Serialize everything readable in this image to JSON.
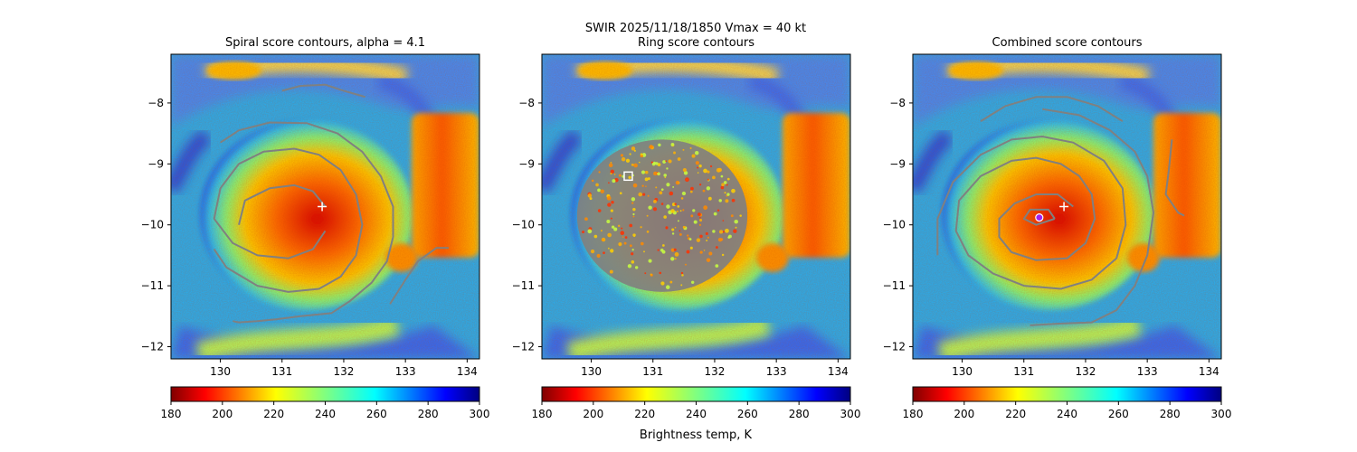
{
  "suptitle": "SWIR  2025/11/18/1850    Vmax = 40 kt",
  "colorbar_label": "Brightness temp, K",
  "colors": {
    "contour": "#808080",
    "marker": "#ffffff",
    "combined_marker": "#a020f0",
    "axis": "#000000"
  },
  "chart_data": [
    {
      "type": "heatmap",
      "title": "Spiral score contours, alpha =  4.1",
      "xlim": [
        129.2,
        134.2
      ],
      "ylim": [
        -12.2,
        -7.2
      ],
      "xticks": [
        130,
        131,
        132,
        133,
        134
      ],
      "yticks": [
        -8,
        -9,
        -10,
        -11,
        -12
      ],
      "colorbar": {
        "cmap": "jet_r",
        "range": [
          180,
          300
        ],
        "ticks": [
          180,
          200,
          220,
          240,
          260,
          280,
          300
        ]
      },
      "markers": [
        {
          "kind": "plus",
          "lon": 131.65,
          "lat": -9.7
        }
      ],
      "contours": [
        [
          [
            130.0,
            -8.65
          ],
          [
            130.3,
            -8.45
          ],
          [
            130.8,
            -8.32
          ],
          [
            131.4,
            -8.33
          ],
          [
            131.9,
            -8.5
          ],
          [
            132.3,
            -8.8
          ],
          [
            132.6,
            -9.2
          ],
          [
            132.8,
            -9.7
          ],
          [
            132.8,
            -10.2
          ],
          [
            132.7,
            -10.6
          ],
          [
            132.45,
            -10.95
          ],
          [
            132.1,
            -11.25
          ],
          [
            131.8,
            -11.45
          ],
          [
            131.3,
            -11.5
          ],
          [
            130.9,
            -11.55
          ],
          [
            130.6,
            -11.58
          ],
          [
            130.3,
            -11.6
          ],
          [
            130.2,
            -11.58
          ]
        ],
        [
          [
            131.7,
            -10.1
          ],
          [
            131.5,
            -10.4
          ],
          [
            131.1,
            -10.55
          ],
          [
            130.6,
            -10.5
          ],
          [
            130.2,
            -10.3
          ],
          [
            129.9,
            -9.9
          ],
          [
            130.0,
            -9.4
          ],
          [
            130.3,
            -9.0
          ],
          [
            130.7,
            -8.8
          ],
          [
            131.2,
            -8.75
          ],
          [
            131.6,
            -8.85
          ],
          [
            131.95,
            -9.1
          ],
          [
            132.2,
            -9.5
          ],
          [
            132.3,
            -10.0
          ],
          [
            132.2,
            -10.5
          ],
          [
            131.95,
            -10.85
          ],
          [
            131.6,
            -11.05
          ],
          [
            131.1,
            -11.1
          ],
          [
            130.6,
            -11.0
          ],
          [
            130.1,
            -10.7
          ],
          [
            129.9,
            -10.4
          ]
        ],
        [
          [
            130.3,
            -10.0
          ],
          [
            130.4,
            -9.6
          ],
          [
            130.8,
            -9.4
          ],
          [
            131.2,
            -9.35
          ],
          [
            131.5,
            -9.45
          ],
          [
            131.7,
            -9.7
          ]
        ],
        [
          [
            131.0,
            -7.8
          ],
          [
            131.3,
            -7.72
          ],
          [
            131.7,
            -7.7
          ],
          [
            132.0,
            -7.8
          ],
          [
            132.35,
            -7.9
          ]
        ],
        [
          [
            132.75,
            -11.3
          ],
          [
            133.0,
            -10.9
          ],
          [
            133.2,
            -10.6
          ],
          [
            133.5,
            -10.38
          ],
          [
            133.7,
            -10.38
          ]
        ]
      ]
    },
    {
      "type": "heatmap",
      "title": "Ring score contours",
      "xlim": [
        129.2,
        134.2
      ],
      "ylim": [
        -12.2,
        -7.2
      ],
      "xticks": [
        130,
        131,
        132,
        133,
        134
      ],
      "yticks": [
        -8,
        -9,
        -10,
        -11,
        -12
      ],
      "colorbar": {
        "cmap": "jet_r",
        "range": [
          180,
          300
        ],
        "ticks": [
          180,
          200,
          220,
          240,
          260,
          280,
          300
        ]
      },
      "markers": [
        {
          "kind": "square",
          "lon": 130.6,
          "lat": -9.2
        }
      ],
      "ring_blob": {
        "center": [
          131.15,
          -9.85
        ],
        "radius_lon": 1.38,
        "radius_lat": 1.25
      },
      "contours": []
    },
    {
      "type": "heatmap",
      "title": "Combined score contours",
      "xlim": [
        129.2,
        134.2
      ],
      "ylim": [
        -12.2,
        -7.2
      ],
      "xticks": [
        130,
        131,
        132,
        133,
        134
      ],
      "yticks": [
        -8,
        -9,
        -10,
        -11,
        -12
      ],
      "colorbar": {
        "cmap": "jet_r",
        "range": [
          180,
          300
        ],
        "ticks": [
          180,
          200,
          220,
          240,
          260,
          280,
          300
        ]
      },
      "markers": [
        {
          "kind": "plus",
          "lon": 131.65,
          "lat": -9.7
        },
        {
          "kind": "circle",
          "lon": 131.25,
          "lat": -9.88
        }
      ],
      "contours": [
        [
          [
            131.3,
            -8.1
          ],
          [
            131.9,
            -8.2
          ],
          [
            132.4,
            -8.45
          ],
          [
            132.8,
            -8.8
          ],
          [
            133.0,
            -9.2
          ],
          [
            133.1,
            -9.8
          ],
          [
            133.0,
            -10.5
          ],
          [
            132.8,
            -11.0
          ],
          [
            132.5,
            -11.4
          ],
          [
            132.1,
            -11.6
          ],
          [
            131.6,
            -11.62
          ],
          [
            131.1,
            -11.65
          ]
        ],
        [
          [
            129.6,
            -10.5
          ],
          [
            129.6,
            -9.9
          ],
          [
            129.85,
            -9.3
          ],
          [
            130.3,
            -8.85
          ],
          [
            130.8,
            -8.6
          ],
          [
            131.3,
            -8.55
          ],
          [
            131.8,
            -8.65
          ],
          [
            132.3,
            -8.95
          ],
          [
            132.6,
            -9.4
          ],
          [
            132.65,
            -10.0
          ],
          [
            132.5,
            -10.55
          ],
          [
            132.1,
            -10.9
          ],
          [
            131.6,
            -11.05
          ],
          [
            131.0,
            -11.0
          ],
          [
            130.5,
            -10.8
          ],
          [
            130.1,
            -10.5
          ],
          [
            129.9,
            -10.1
          ],
          [
            129.95,
            -9.6
          ],
          [
            130.3,
            -9.2
          ],
          [
            130.8,
            -8.95
          ],
          [
            131.2,
            -8.9
          ],
          [
            131.6,
            -9.0
          ],
          [
            131.9,
            -9.2
          ],
          [
            132.1,
            -9.5
          ],
          [
            132.15,
            -9.9
          ],
          [
            132.0,
            -10.3
          ],
          [
            131.7,
            -10.55
          ],
          [
            131.2,
            -10.58
          ],
          [
            130.8,
            -10.45
          ],
          [
            130.6,
            -10.2
          ],
          [
            130.6,
            -9.9
          ],
          [
            130.85,
            -9.65
          ],
          [
            131.2,
            -9.5
          ],
          [
            131.55,
            -9.5
          ],
          [
            131.8,
            -9.7
          ]
        ],
        [
          [
            131.5,
            -9.9
          ],
          [
            131.2,
            -10.0
          ],
          [
            131.0,
            -9.9
          ],
          [
            131.1,
            -9.75
          ],
          [
            131.4,
            -9.75
          ],
          [
            131.5,
            -9.9
          ]
        ],
        [
          [
            130.3,
            -8.3
          ],
          [
            130.7,
            -8.05
          ],
          [
            131.2,
            -7.9
          ],
          [
            131.7,
            -7.9
          ],
          [
            132.2,
            -8.05
          ],
          [
            132.6,
            -8.3
          ]
        ],
        [
          [
            133.4,
            -8.6
          ],
          [
            133.35,
            -9.1
          ],
          [
            133.3,
            -9.5
          ],
          [
            133.5,
            -9.8
          ],
          [
            133.6,
            -9.85
          ]
        ]
      ]
    }
  ]
}
